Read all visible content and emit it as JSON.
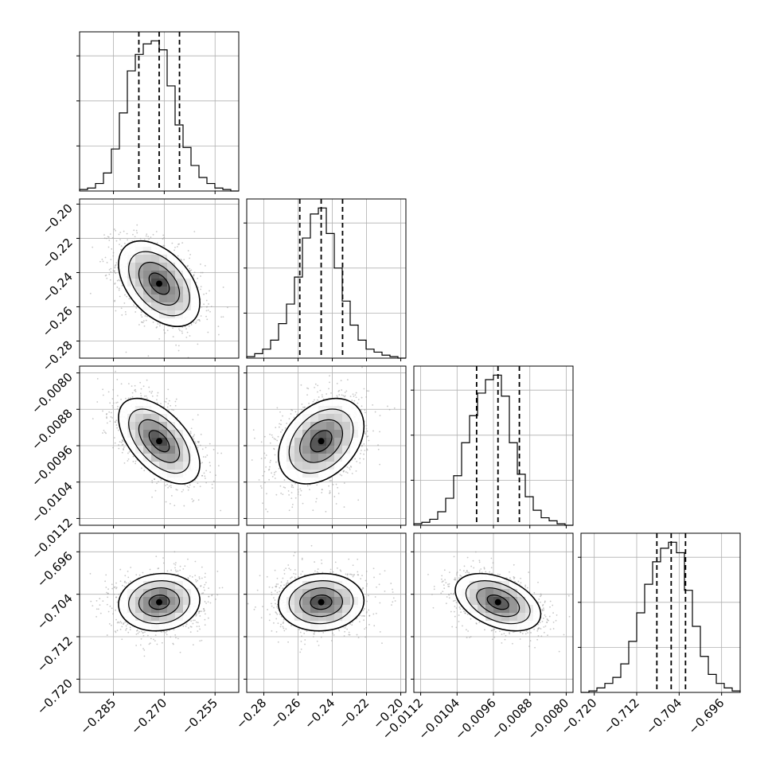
{
  "chart_data": {
    "type": "corner",
    "grid": true,
    "parameters": [
      {
        "range": [
          -0.295,
          -0.248
        ],
        "ticks": [
          -0.285,
          -0.27,
          -0.255
        ],
        "tick_labels": [
          "−0.285",
          "−0.270",
          "−0.255"
        ],
        "median": -0.2715,
        "quantiles": [
          -0.2775,
          -0.2655
        ],
        "histogram": [
          0.01,
          0.02,
          0.05,
          0.12,
          0.28,
          0.52,
          0.8,
          0.91,
          0.98,
          1.0,
          0.94,
          0.7,
          0.44,
          0.29,
          0.17,
          0.09,
          0.05,
          0.02,
          0.01,
          0.0
        ],
        "hist_ticks": [
          0.3,
          0.6,
          0.9
        ]
      },
      {
        "range": [
          -0.29,
          -0.197
        ],
        "ticks": [
          -0.28,
          -0.26,
          -0.24,
          -0.22,
          -0.2
        ],
        "tick_labels": [
          "−0.28",
          "−0.26",
          "−0.24",
          "−0.22",
          "−0.20"
        ],
        "median": -0.2465,
        "quantiles": [
          -0.259,
          -0.234
        ],
        "histogram": [
          0.01,
          0.03,
          0.06,
          0.12,
          0.23,
          0.36,
          0.54,
          0.8,
          0.96,
          1.0,
          0.83,
          0.6,
          0.38,
          0.22,
          0.12,
          0.06,
          0.04,
          0.02,
          0.01,
          0.0
        ],
        "hist_ticks": [
          0.3,
          0.6,
          0.9
        ]
      },
      {
        "range": [
          -0.01135,
          -0.00785
        ],
        "ticks": [
          -0.0112,
          -0.0104,
          -0.0096,
          -0.0088,
          -0.008
        ],
        "tick_labels": [
          "−0.0112",
          "−0.0104",
          "−0.0096",
          "−0.0088",
          "−0.0080"
        ],
        "median": -0.0095,
        "quantiles": [
          -0.00997,
          -0.00903
        ],
        "histogram": [
          0.01,
          0.02,
          0.04,
          0.09,
          0.18,
          0.33,
          0.55,
          0.73,
          0.88,
          0.97,
          1.0,
          0.86,
          0.55,
          0.34,
          0.19,
          0.1,
          0.05,
          0.03,
          0.01,
          0.0
        ],
        "hist_ticks": [
          0.3,
          0.6,
          0.9
        ]
      },
      {
        "range": [
          -0.7225,
          -0.6925
        ],
        "ticks": [
          -0.72,
          -0.712,
          -0.704,
          -0.696
        ],
        "tick_labels": [
          "−0.720",
          "−0.712",
          "−0.704",
          "−0.696"
        ],
        "median": -0.7055,
        "quantiles": [
          -0.7082,
          -0.7028
        ],
        "histogram": [
          0.0,
          0.01,
          0.03,
          0.06,
          0.1,
          0.19,
          0.34,
          0.53,
          0.72,
          0.87,
          0.96,
          1.0,
          0.93,
          0.68,
          0.44,
          0.24,
          0.12,
          0.06,
          0.03,
          0.01
        ],
        "hist_ticks": [
          0.3,
          0.6,
          0.9
        ]
      }
    ],
    "correlations": {
      "1-0": -0.45,
      "2-0": -0.55,
      "2-1": 0.35,
      "3-0": 0.08,
      "3-1": 0.05,
      "3-2": -0.42
    },
    "contour_levels_sigma": [
      0.5,
      1.0,
      1.5,
      2.0
    ],
    "scatter_points": 1400,
    "colors": {
      "hist": "#000000",
      "grid": "#b0b0b0",
      "scatter": "#9a9a9a",
      "density": "#000000"
    }
  }
}
